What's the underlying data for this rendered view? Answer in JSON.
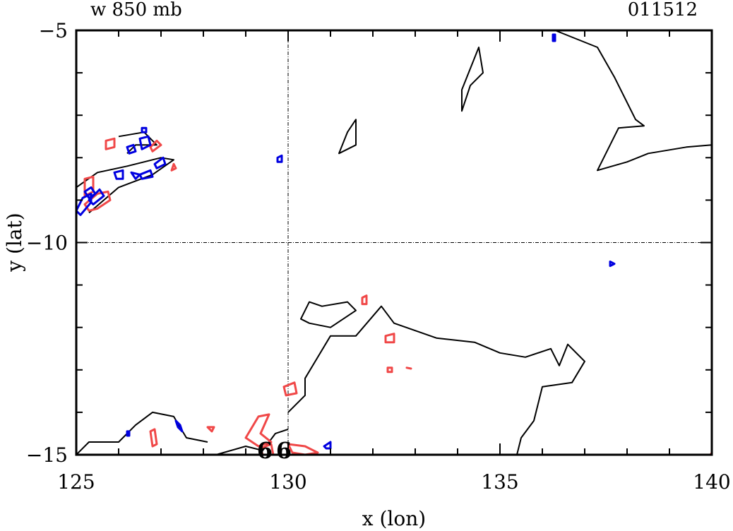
{
  "chart_data": {
    "type": "contour",
    "title_left": "w 850 mb",
    "title_right": "011512",
    "xlabel": "x (lon)",
    "ylabel": "y (lat)",
    "xlim": [
      125,
      140
    ],
    "ylim": [
      -15,
      -5
    ],
    "x_ticks": [
      125,
      130,
      135,
      140
    ],
    "x_tick_labels": [
      "125",
      "130",
      "135",
      "140"
    ],
    "y_ticks": [
      -5,
      -10,
      -15
    ],
    "y_tick_labels": [
      "−5",
      "−10",
      "−15"
    ],
    "grid_lines": {
      "x": 130,
      "y": -10
    },
    "colors": {
      "black": "#000000",
      "red": "#f04848",
      "blue": "#0000e0",
      "green": "#00e000"
    },
    "markers": [
      {
        "label": "6",
        "x": 129.45,
        "y": -14.85,
        "color": "#000000"
      },
      {
        "label": "6",
        "x": 129.9,
        "y": -14.85,
        "color": "#00e000"
      }
    ],
    "contours": [
      {
        "color": "#000000",
        "closed": false,
        "points": [
          [
            136.3,
            -5
          ],
          [
            137.3,
            -5.4
          ],
          [
            137.7,
            -6.1
          ],
          [
            138.2,
            -7.1
          ],
          [
            138.4,
            -7.25
          ],
          [
            137.8,
            -7.3
          ],
          [
            137.3,
            -8.3
          ],
          [
            138.0,
            -8.1
          ],
          [
            138.5,
            -7.9
          ],
          [
            139.4,
            -7.75
          ],
          [
            140,
            -7.7
          ]
        ]
      },
      {
        "color": "#000000",
        "closed": true,
        "points": [
          [
            134.5,
            -5.4
          ],
          [
            134.6,
            -6.0
          ],
          [
            134.3,
            -6.3
          ],
          [
            134.1,
            -6.9
          ],
          [
            134.1,
            -6.4
          ]
        ]
      },
      {
        "color": "#000000",
        "closed": true,
        "points": [
          [
            131.6,
            -7.1
          ],
          [
            131.4,
            -7.4
          ],
          [
            131.2,
            -7.9
          ],
          [
            131.6,
            -7.7
          ]
        ]
      },
      {
        "color": "#000000",
        "closed": false,
        "points": [
          [
            126.0,
            -7.5
          ],
          [
            126.6,
            -7.4
          ],
          [
            126.9,
            -7.7
          ],
          [
            126.4,
            -7.7
          ],
          [
            126.2,
            -7.9
          ]
        ]
      },
      {
        "color": "#000000",
        "closed": false,
        "points": [
          [
            125.0,
            -8.7
          ],
          [
            125.5,
            -8.35
          ],
          [
            126.2,
            -8.2
          ],
          [
            127.0,
            -8.0
          ],
          [
            127.3,
            -8.05
          ],
          [
            126.8,
            -8.4
          ],
          [
            126.0,
            -8.7
          ],
          [
            125.3,
            -9.3
          ]
        ]
      },
      {
        "color": "#000000",
        "closed": true,
        "points": [
          [
            130.3,
            -11.8
          ],
          [
            130.5,
            -11.4
          ],
          [
            130.8,
            -11.5
          ],
          [
            131.4,
            -11.4
          ],
          [
            131.6,
            -11.6
          ],
          [
            131.0,
            -12.0
          ],
          [
            130.5,
            -11.9
          ]
        ]
      },
      {
        "color": "#000000",
        "closed": false,
        "points": [
          [
            130.0,
            -14.0
          ],
          [
            130.4,
            -13.6
          ],
          [
            130.4,
            -13.2
          ],
          [
            131.0,
            -12.2
          ],
          [
            131.6,
            -12.2
          ],
          [
            132.2,
            -11.5
          ],
          [
            132.5,
            -11.9
          ],
          [
            133.5,
            -12.25
          ],
          [
            134.4,
            -12.35
          ],
          [
            135.0,
            -12.6
          ],
          [
            135.6,
            -12.7
          ],
          [
            136.2,
            -12.5
          ],
          [
            136.4,
            -12.9
          ],
          [
            136.6,
            -12.4
          ],
          [
            137.0,
            -12.8
          ],
          [
            136.7,
            -13.3
          ],
          [
            136.0,
            -13.4
          ],
          [
            135.8,
            -14.2
          ],
          [
            135.5,
            -14.6
          ],
          [
            135.4,
            -15.0
          ]
        ]
      },
      {
        "color": "#000000",
        "closed": false,
        "points": [
          [
            125.0,
            -15.0
          ],
          [
            125.3,
            -14.7
          ],
          [
            126.0,
            -14.7
          ],
          [
            126.4,
            -14.3
          ],
          [
            126.8,
            -14.0
          ],
          [
            127.3,
            -14.1
          ],
          [
            127.6,
            -14.6
          ],
          [
            128.1,
            -14.7
          ]
        ]
      },
      {
        "color": "#000000",
        "closed": false,
        "points": [
          [
            128.3,
            -15.0
          ],
          [
            129.0,
            -14.8
          ],
          [
            129.4,
            -14.9
          ],
          [
            129.7,
            -14.5
          ],
          [
            130.0,
            -14.4
          ]
        ]
      },
      {
        "color": "#f04848",
        "closed": true,
        "points": [
          [
            125.7,
            -7.6
          ],
          [
            125.9,
            -7.55
          ],
          [
            125.9,
            -7.75
          ],
          [
            125.7,
            -7.8
          ]
        ]
      },
      {
        "color": "#f04848",
        "closed": true,
        "points": [
          [
            126.9,
            -7.6
          ],
          [
            127.0,
            -7.7
          ],
          [
            126.8,
            -7.85
          ],
          [
            126.75,
            -7.75
          ]
        ]
      },
      {
        "color": "#f04848",
        "closed": true,
        "points": [
          [
            125.2,
            -8.5
          ],
          [
            125.4,
            -8.45
          ],
          [
            125.4,
            -8.8
          ],
          [
            125.2,
            -8.9
          ]
        ]
      },
      {
        "color": "#f04848",
        "closed": true,
        "points": [
          [
            125.2,
            -9.1
          ],
          [
            125.5,
            -8.85
          ],
          [
            125.75,
            -8.8
          ],
          [
            125.8,
            -9.0
          ],
          [
            125.5,
            -9.2
          ],
          [
            125.3,
            -9.25
          ]
        ]
      },
      {
        "color": "#f04848",
        "closed": true,
        "points": [
          [
            127.3,
            -8.15
          ],
          [
            127.35,
            -8.25
          ],
          [
            127.25,
            -8.3
          ]
        ]
      },
      {
        "color": "#f04848",
        "closed": true,
        "points": [
          [
            131.75,
            -11.3
          ],
          [
            131.85,
            -11.25
          ],
          [
            131.85,
            -11.45
          ],
          [
            131.75,
            -11.45
          ]
        ]
      },
      {
        "color": "#f04848",
        "closed": true,
        "points": [
          [
            132.3,
            -12.2
          ],
          [
            132.5,
            -12.15
          ],
          [
            132.5,
            -12.35
          ],
          [
            132.3,
            -12.35
          ]
        ]
      },
      {
        "color": "#f04848",
        "closed": true,
        "points": [
          [
            132.35,
            -12.95
          ],
          [
            132.45,
            -12.95
          ],
          [
            132.45,
            -13.05
          ],
          [
            132.35,
            -13.05
          ]
        ]
      },
      {
        "color": "#f04848",
        "closed": true,
        "points": [
          [
            132.8,
            -12.95
          ],
          [
            132.9,
            -12.97
          ]
        ]
      },
      {
        "color": "#f04848",
        "closed": true,
        "points": [
          [
            129.9,
            -13.4
          ],
          [
            130.15,
            -13.3
          ],
          [
            130.2,
            -13.55
          ],
          [
            129.95,
            -13.6
          ]
        ]
      },
      {
        "color": "#f04848",
        "closed": true,
        "points": [
          [
            129.0,
            -14.6
          ],
          [
            129.3,
            -14.1
          ],
          [
            129.55,
            -14.05
          ],
          [
            129.35,
            -14.5
          ],
          [
            129.6,
            -14.7
          ],
          [
            129.3,
            -14.8
          ]
        ]
      },
      {
        "color": "#f04848",
        "closed": true,
        "points": [
          [
            129.35,
            -14.85
          ],
          [
            129.6,
            -14.75
          ],
          [
            129.65,
            -15.0
          ],
          [
            129.4,
            -15.0
          ]
        ]
      },
      {
        "color": "#f04848",
        "closed": true,
        "points": [
          [
            130.0,
            -14.75
          ],
          [
            130.4,
            -14.8
          ],
          [
            130.7,
            -14.95
          ],
          [
            130.4,
            -15.0
          ],
          [
            130.1,
            -14.95
          ]
        ]
      },
      {
        "color": "#f04848",
        "closed": true,
        "points": [
          [
            126.75,
            -14.45
          ],
          [
            126.85,
            -14.4
          ],
          [
            126.9,
            -14.75
          ],
          [
            126.8,
            -14.8
          ]
        ]
      },
      {
        "color": "#f04848",
        "closed": true,
        "points": [
          [
            128.1,
            -14.35
          ],
          [
            128.25,
            -14.35
          ],
          [
            128.2,
            -14.45
          ]
        ]
      },
      {
        "color": "#f04848",
        "closed": true,
        "points": [
          [
            140.0,
            -14.95
          ],
          [
            139.97,
            -15.0
          ]
        ]
      },
      {
        "color": "#0000e0",
        "closed": true,
        "points": [
          [
            126.2,
            -7.75
          ],
          [
            126.35,
            -7.7
          ],
          [
            126.4,
            -7.85
          ],
          [
            126.25,
            -7.9
          ]
        ]
      },
      {
        "color": "#0000e0",
        "closed": true,
        "points": [
          [
            126.5,
            -7.55
          ],
          [
            126.7,
            -7.5
          ],
          [
            126.75,
            -7.7
          ],
          [
            126.55,
            -7.8
          ]
        ]
      },
      {
        "color": "#0000e0",
        "closed": true,
        "points": [
          [
            126.55,
            -7.3
          ],
          [
            126.65,
            -7.3
          ],
          [
            126.65,
            -7.4
          ],
          [
            126.55,
            -7.4
          ]
        ]
      },
      {
        "color": "#0000e0",
        "closed": true,
        "points": [
          [
            125.9,
            -8.35
          ],
          [
            126.1,
            -8.3
          ],
          [
            126.1,
            -8.5
          ],
          [
            125.95,
            -8.5
          ]
        ]
      },
      {
        "color": "#0000e0",
        "closed": true,
        "points": [
          [
            126.3,
            -8.35
          ],
          [
            126.5,
            -8.4
          ],
          [
            126.4,
            -8.5
          ]
        ]
      },
      {
        "color": "#0000e0",
        "closed": true,
        "points": [
          [
            126.5,
            -8.4
          ],
          [
            126.75,
            -8.3
          ],
          [
            126.8,
            -8.45
          ],
          [
            126.55,
            -8.5
          ]
        ]
      },
      {
        "color": "#0000e0",
        "closed": true,
        "points": [
          [
            126.85,
            -8.15
          ],
          [
            127.05,
            -8.0
          ],
          [
            127.1,
            -8.15
          ],
          [
            126.9,
            -8.25
          ]
        ]
      },
      {
        "color": "#0000e0",
        "closed": true,
        "points": [
          [
            125.0,
            -9.25
          ],
          [
            125.15,
            -8.95
          ],
          [
            125.35,
            -8.85
          ],
          [
            125.35,
            -9.05
          ],
          [
            125.1,
            -9.35
          ]
        ]
      },
      {
        "color": "#0000e0",
        "closed": true,
        "points": [
          [
            125.2,
            -8.8
          ],
          [
            125.35,
            -8.7
          ],
          [
            125.45,
            -8.85
          ],
          [
            125.3,
            -8.95
          ]
        ]
      },
      {
        "color": "#0000e0",
        "closed": true,
        "points": [
          [
            125.3,
            -9.0
          ],
          [
            125.55,
            -8.75
          ],
          [
            125.65,
            -8.9
          ],
          [
            125.4,
            -9.1
          ]
        ]
      },
      {
        "color": "#0000e0",
        "closed": true,
        "points": [
          [
            129.75,
            -8.0
          ],
          [
            129.85,
            -7.95
          ],
          [
            129.85,
            -8.1
          ],
          [
            129.75,
            -8.1
          ]
        ]
      },
      {
        "color": "#0000e0",
        "closed": true,
        "points": [
          [
            136.25,
            -5.1
          ],
          [
            136.3,
            -5.1
          ],
          [
            136.3,
            -5.25
          ],
          [
            136.25,
            -5.25
          ]
        ]
      },
      {
        "color": "#0000e0",
        "closed": true,
        "points": [
          [
            137.6,
            -10.45
          ],
          [
            137.7,
            -10.5
          ],
          [
            137.6,
            -10.55
          ]
        ]
      },
      {
        "color": "#0000e0",
        "closed": true,
        "points": [
          [
            127.35,
            -14.2
          ],
          [
            127.45,
            -14.3
          ],
          [
            127.5,
            -14.45
          ],
          [
            127.4,
            -14.35
          ]
        ]
      },
      {
        "color": "#0000e0",
        "closed": true,
        "points": [
          [
            126.2,
            -14.45
          ],
          [
            126.25,
            -14.45
          ],
          [
            126.25,
            -14.55
          ],
          [
            126.2,
            -14.55
          ]
        ]
      },
      {
        "color": "#0000e0",
        "closed": true,
        "points": [
          [
            130.85,
            -14.8
          ],
          [
            131.0,
            -14.7
          ],
          [
            131.0,
            -14.85
          ],
          [
            130.9,
            -14.85
          ]
        ]
      }
    ]
  }
}
